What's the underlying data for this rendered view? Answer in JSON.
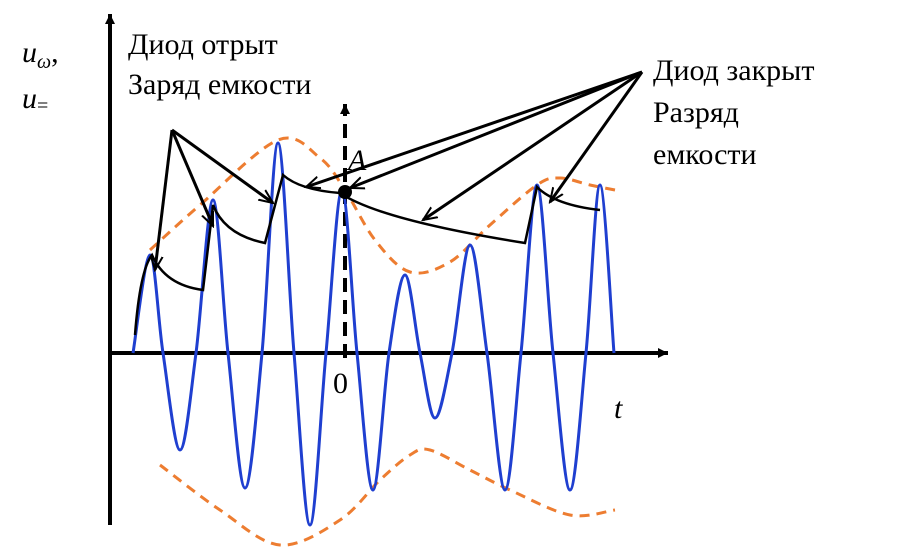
{
  "axis_labels": {
    "y_main": "u",
    "y_main_sub": "ω",
    "y_sep": ",",
    "y_second": "u",
    "y_second_sub": "=",
    "x": "t",
    "origin": "0"
  },
  "point_label": "A",
  "notes": {
    "charge": {
      "line1": "Диод отрыт",
      "line2": "Заряд емкости"
    },
    "discharge": {
      "line1": "Диод закрыт",
      "line2": "Разряд",
      "line3": "емкости"
    }
  }
}
